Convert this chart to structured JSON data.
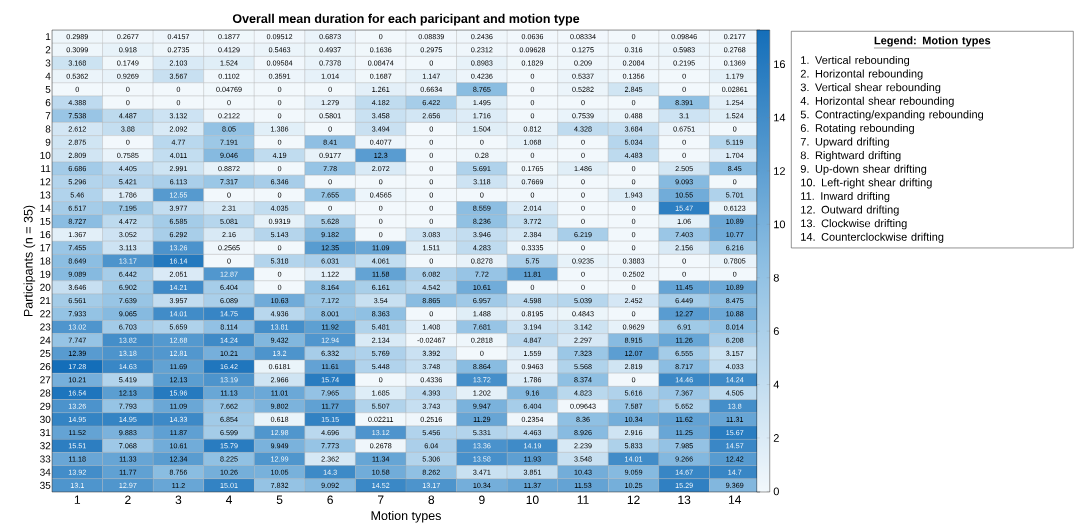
{
  "chart_data": {
    "type": "heatmap",
    "title": "Overall mean duration for each paricipant and motion type",
    "xlabel": "Motion types",
    "ylabel": "Participants (n = 35)",
    "legend_title": "Legend: Motion types",
    "annotations": [
      "1. Vertical rebounding",
      "2. Horizontal rebounding",
      "3. Vertical shear rebounding",
      "4. Horizontal shear rebounding",
      "5. Contracting/expanding rebounding",
      "6. Rotating rebounding",
      "7. Upward drifting",
      "8. Rightward drifting",
      "9. Up-down shear drifting",
      "10. Left-right shear drifting",
      "11. Inward drifting",
      "12. Outward drifting",
      "13. Clockwise drifting",
      "14. Counterclockwise drifting"
    ],
    "categories": [
      "1",
      "2",
      "3",
      "4",
      "5",
      "6",
      "7",
      "8",
      "9",
      "10",
      "11",
      "12",
      "13",
      "14"
    ],
    "y_categories": [
      "1",
      "2",
      "3",
      "4",
      "5",
      "6",
      "7",
      "8",
      "9",
      "10",
      "11",
      "12",
      "13",
      "14",
      "15",
      "16",
      "17",
      "18",
      "19",
      "20",
      "21",
      "22",
      "23",
      "24",
      "25",
      "26",
      "27",
      "28",
      "29",
      "30",
      "31",
      "32",
      "33",
      "34",
      "35"
    ],
    "cells": [
      [
        0.2989,
        0.2677,
        0.4157,
        0.1877,
        0.09512,
        0.6873,
        0,
        0.08839,
        0.2436,
        0.0636,
        0.08334,
        0,
        0.09846,
        0.2177
      ],
      [
        0.3099,
        0.918,
        0.2735,
        0.4129,
        0.5463,
        0.4937,
        0.1636,
        0.2975,
        0.2312,
        0.09628,
        0.1275,
        0.316,
        0.5983,
        0.2768
      ],
      [
        3.168,
        0.1749,
        2.103,
        1.524,
        0.09584,
        0.7378,
        0.08474,
        0,
        0.8983,
        0.1829,
        0.209,
        0.2084,
        0.2195,
        0.1369
      ],
      [
        0.5362,
        0.9269,
        3.567,
        0.1102,
        0.3591,
        1.014,
        0.1687,
        1.147,
        0.4236,
        0,
        0.5337,
        0.1356,
        0,
        1.179
      ],
      [
        0,
        0,
        0,
        0.04769,
        0,
        0,
        1.261,
        0.6634,
        8.765,
        0,
        0.5282,
        2.845,
        0,
        0.02861
      ],
      [
        4.388,
        0,
        0,
        0,
        0,
        1.279,
        4.182,
        6.422,
        1.495,
        0,
        0,
        0,
        8.391,
        1.254
      ],
      [
        7.538,
        4.487,
        3.132,
        0.2122,
        0,
        0.5801,
        3.458,
        2.656,
        1.716,
        0,
        0.7539,
        0.488,
        3.1,
        1.524
      ],
      [
        2.612,
        3.88,
        2.092,
        8.05,
        1.386,
        0,
        3.494,
        0,
        1.504,
        0.812,
        4.328,
        3.684,
        0.6751,
        0
      ],
      [
        2.875,
        0,
        4.77,
        7.191,
        0,
        8.41,
        0.4077,
        0,
        0,
        1.068,
        0,
        5.034,
        0,
        5.119
      ],
      [
        2.809,
        0.7585,
        4.011,
        9.046,
        4.19,
        0.9177,
        12.3,
        0,
        0.28,
        0,
        0,
        4.483,
        0,
        1.704
      ],
      [
        6.686,
        4.405,
        2.991,
        0.8872,
        0,
        7.78,
        2.072,
        0,
        5.691,
        0.1765,
        1.486,
        0,
        2.505,
        8.45
      ],
      [
        5.296,
        5.421,
        6.113,
        7.317,
        6.346,
        0,
        0,
        0,
        3.118,
        0.7669,
        0,
        0,
        9.093,
        0
      ],
      [
        5.46,
        1.786,
        12.55,
        0,
        0,
        7.655,
        0.4565,
        0,
        0,
        0,
        0,
        1.943,
        10.55,
        5.701
      ],
      [
        6.517,
        7.195,
        3.977,
        2.31,
        4.035,
        0,
        0,
        0,
        8.559,
        2.014,
        0,
        0,
        15.47,
        0.6123
      ],
      [
        8.727,
        4.472,
        6.585,
        5.081,
        0.9319,
        5.628,
        0,
        0,
        8.236,
        3.772,
        0,
        0,
        1.06,
        10.89
      ],
      [
        1.367,
        3.052,
        6.292,
        2.16,
        5.143,
        9.182,
        0,
        3.083,
        3.946,
        2.384,
        6.219,
        0,
        7.403,
        10.77
      ],
      [
        7.455,
        3.113,
        13.26,
        0.2565,
        0,
        12.35,
        11.09,
        1.511,
        4.283,
        0.3335,
        0,
        0,
        2.156,
        6.216
      ],
      [
        8.649,
        13.17,
        16.14,
        0,
        5.318,
        6.031,
        4.061,
        0,
        0.8278,
        5.75,
        0.9235,
        0.3883,
        0,
        0.7805
      ],
      [
        9.089,
        6.442,
        2.051,
        12.87,
        0,
        1.122,
        11.58,
        6.082,
        7.72,
        11.81,
        0,
        0.2502,
        0,
        0
      ],
      [
        3.646,
        6.902,
        14.21,
        6.404,
        0,
        8.164,
        6.161,
        4.542,
        10.61,
        0,
        0,
        0,
        11.45,
        10.89
      ],
      [
        6.561,
        7.639,
        3.957,
        6.089,
        10.63,
        7.172,
        3.54,
        8.865,
        6.957,
        4.598,
        5.039,
        2.452,
        6.449,
        8.475
      ],
      [
        7.933,
        9.065,
        14.01,
        14.75,
        4.936,
        8.001,
        8.363,
        0,
        1.488,
        0.8195,
        0.4843,
        0,
        12.27,
        10.88
      ],
      [
        13.02,
        6.703,
        5.659,
        8.114,
        13.81,
        11.92,
        5.481,
        1.408,
        7.681,
        3.194,
        3.142,
        0.9629,
        6.91,
        8.014
      ],
      [
        7.747,
        13.82,
        12.68,
        14.24,
        9.432,
        12.94,
        2.134,
        -0.02467,
        0.2818,
        4.847,
        2.297,
        8.915,
        11.26,
        6.208
      ],
      [
        12.39,
        13.18,
        12.81,
        10.21,
        13.2,
        6.332,
        5.769,
        3.392,
        0,
        1.559,
        7.323,
        12.07,
        6.555,
        3.157
      ],
      [
        17.28,
        14.63,
        11.69,
        16.42,
        0.6181,
        11.61,
        5.448,
        3.748,
        8.864,
        0.9463,
        5.568,
        2.819,
        8.717,
        4.033
      ],
      [
        10.21,
        5.419,
        12.13,
        13.19,
        2.966,
        15.74,
        0,
        0.4336,
        13.72,
        1.786,
        8.374,
        0,
        14.46,
        14.24
      ],
      [
        16.54,
        12.13,
        15.96,
        11.13,
        11.01,
        7.965,
        1.685,
        4.393,
        1.202,
        9.16,
        4.823,
        5.616,
        7.367,
        4.505
      ],
      [
        13.26,
        7.793,
        11.09,
        7.662,
        9.802,
        11.77,
        5.507,
        3.743,
        9.947,
        6.404,
        0.09643,
        7.587,
        5.652,
        13.8
      ],
      [
        14.95,
        14.95,
        14.33,
        6.854,
        0.618,
        15.15,
        0.02211,
        0.2516,
        11.29,
        0.2354,
        8.36,
        10.34,
        11.62,
        11.31
      ],
      [
        11.52,
        9.883,
        11.87,
        6.599,
        12.98,
        4.696,
        13.12,
        5.456,
        5.331,
        4.463,
        8.926,
        2.916,
        11.25,
        15.67
      ],
      [
        15.51,
        7.068,
        10.61,
        15.79,
        9.949,
        7.773,
        0.2678,
        6.04,
        13.36,
        14.19,
        2.239,
        5.833,
        7.985,
        14.57
      ],
      [
        11.18,
        11.33,
        12.34,
        8.225,
        12.99,
        2.362,
        11.34,
        5.306,
        13.58,
        11.93,
        3.548,
        14.01,
        9.266,
        12.42
      ],
      [
        13.92,
        11.77,
        8.756,
        10.26,
        10.05,
        14.3,
        10.58,
        8.262,
        3.471,
        3.851,
        10.43,
        9.059,
        14.67,
        14.7
      ],
      [
        13.1,
        12.97,
        11.2,
        15.01,
        7.832,
        9.092,
        14.52,
        13.17,
        10.34,
        11.37,
        11.53,
        10.25,
        15.29,
        9.369
      ]
    ],
    "data_labels": true,
    "clim": [
      -0.02467,
      17.28
    ],
    "cticks": [
      0,
      2,
      4,
      6,
      8,
      10,
      12,
      14,
      16
    ]
  }
}
